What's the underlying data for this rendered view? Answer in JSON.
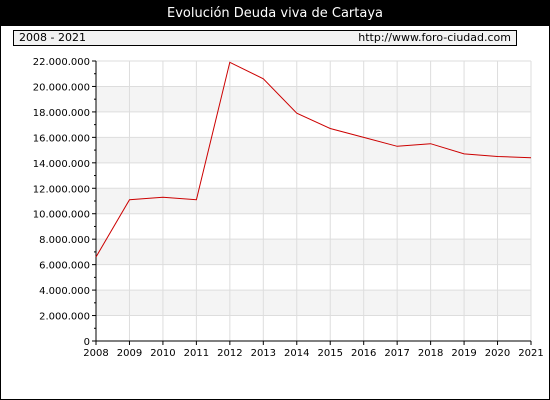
{
  "colors": {
    "title_bg": "#000000",
    "title_fg": "#ffffff",
    "band_fill": "#f4f4f4",
    "grid": "#dddddd",
    "series_line": "#cc0000"
  },
  "header": {
    "title": "Evolución Deuda viva de Cartaya",
    "range_label": "2008 - 2021",
    "source_url": "http://www.foro-ciudad.com"
  },
  "chart_data": {
    "type": "line",
    "title": "Evolución Deuda viva de Cartaya",
    "xlabel": "",
    "ylabel": "",
    "x": [
      2008,
      2009,
      2010,
      2011,
      2012,
      2013,
      2014,
      2015,
      2016,
      2017,
      2018,
      2019,
      2020,
      2021
    ],
    "x_tick_labels": [
      "2008",
      "2009",
      "2010",
      "2011",
      "2012",
      "2013",
      "2014",
      "2015",
      "2016",
      "2017",
      "2018",
      "2019",
      "2020",
      "2021"
    ],
    "series": [
      {
        "values": [
          6600000,
          11100000,
          11300000,
          11100000,
          21900000,
          20600000,
          17900000,
          16700000,
          16000000,
          15300000,
          15500000,
          14700000,
          14500000,
          14400000
        ]
      }
    ],
    "xlim": [
      2008,
      2021
    ],
    "ylim": [
      0,
      22000000
    ],
    "y_ticks": [
      0,
      2000000,
      4000000,
      6000000,
      8000000,
      10000000,
      12000000,
      14000000,
      16000000,
      18000000,
      20000000,
      22000000
    ],
    "y_tick_labels": [
      "0",
      "2.000.000",
      "4.000.000",
      "6.000.000",
      "8.000.000",
      "10.000.000",
      "12.000.000",
      "14.000.000",
      "16.000.000",
      "18.000.000",
      "20.000.000",
      "22.000.000"
    ],
    "grid": true,
    "alternating_bands": true
  }
}
